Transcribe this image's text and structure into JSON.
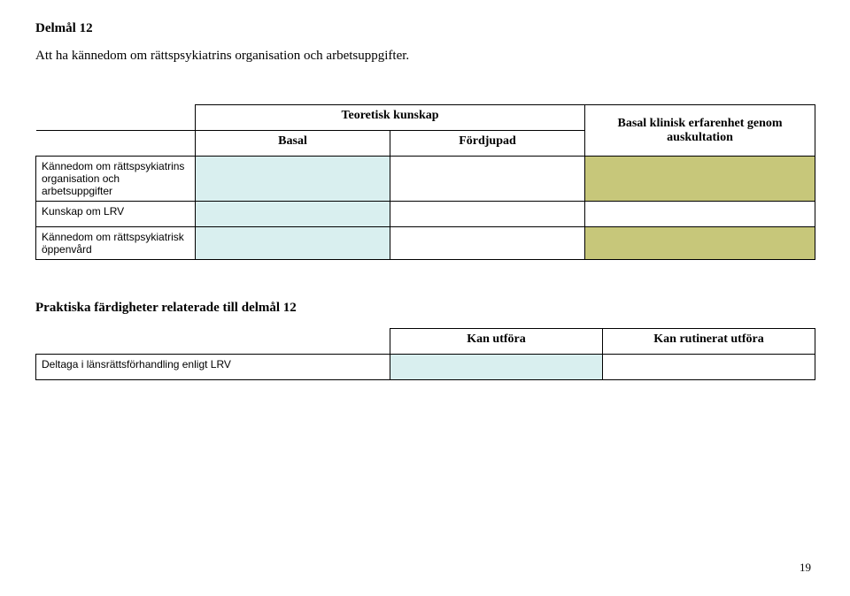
{
  "page": {
    "title": "Delmål 12",
    "subtitle": "Att ha kännedom om rättspsykiatrins organisation och arbetsuppgifter.",
    "page_number": "19"
  },
  "theory_table": {
    "header_top": "Teoretisk kunskap",
    "header_basal": "Basal",
    "header_fordjupad": "Fördjupad",
    "header_auskultation": "Basal klinisk erfarenhet genom auskultation",
    "rows": [
      {
        "label": "Kännedom om rättspsykiatrins organisation och arbetsuppgifter"
      },
      {
        "label": "Kunskap om LRV"
      },
      {
        "label": "Kännedom om rättspsykiatrisk öppenvård"
      }
    ],
    "colors": {
      "blue": "#d9efef",
      "olive": "#c7c77a"
    }
  },
  "practical": {
    "heading": "Praktiska färdigheter relaterade till delmål 12",
    "header_can": "Kan utföra",
    "header_routine": "Kan rutinerat utföra",
    "rows": [
      {
        "label": "Deltaga i länsrättsförhandling enligt LRV"
      }
    ]
  }
}
